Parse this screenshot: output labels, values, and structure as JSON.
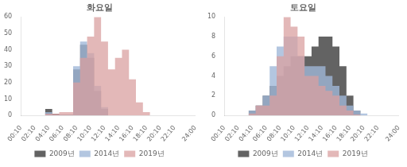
{
  "chart_data": [
    {
      "type": "area",
      "title": "화요일",
      "categories": [
        "00:10",
        null,
        "02:10",
        null,
        "04:10",
        null,
        "06:10",
        null,
        "08:10",
        null,
        "10:10",
        null,
        "12:10",
        null,
        "14:10",
        null,
        "16:10",
        null,
        "18:10",
        null,
        "20:10",
        null,
        "22:10",
        null,
        null,
        "24:00"
      ],
      "series": [
        {
          "name": "2009년",
          "color": "#4d4d4d",
          "values": [
            0,
            0,
            0,
            0,
            4,
            1,
            0.5,
            0.5,
            28,
            43,
            35,
            15,
            4,
            0,
            0,
            0,
            0,
            0,
            0,
            0,
            0,
            0,
            0,
            0,
            0,
            0
          ]
        },
        {
          "name": "2014년",
          "color": "#a0b8d8",
          "values": [
            0,
            0,
            0,
            0,
            2,
            0.5,
            0.5,
            0.5,
            30,
            45,
            38,
            18,
            5,
            0,
            0,
            0,
            0,
            0,
            0,
            0,
            0,
            0,
            0,
            0,
            0,
            0
          ]
        },
        {
          "name": "2019년",
          "color": "#d9a0a0",
          "values": [
            0,
            0,
            0,
            0,
            1,
            1,
            2,
            2,
            20,
            35,
            48,
            60,
            45,
            28,
            35,
            40,
            22,
            8,
            2,
            0,
            0,
            0,
            0,
            0,
            0,
            0
          ]
        }
      ],
      "ylim": [
        0,
        60
      ],
      "yticks": [
        0,
        10,
        20,
        30,
        40,
        50,
        60
      ],
      "grid": false,
      "legend": "bottom",
      "line_style": "step"
    },
    {
      "type": "area",
      "title": "토요일",
      "categories": [
        "00:10",
        null,
        "02:10",
        null,
        "04:10",
        null,
        "06:10",
        null,
        "08:10",
        null,
        "10:10",
        null,
        "12:10",
        null,
        "14:10",
        null,
        "16:10",
        null,
        "18:10",
        null,
        "20:10",
        null,
        "22:10",
        null,
        null,
        "24:00"
      ],
      "series": [
        {
          "name": "2009년",
          "color": "#4d4d4d",
          "values": [
            0,
            0,
            0,
            0,
            0.5,
            1,
            2,
            3,
            4,
            5,
            6,
            6,
            6,
            7,
            8,
            8,
            7,
            5,
            2,
            0.5,
            0,
            0,
            0,
            0,
            0,
            0
          ]
        },
        {
          "name": "2014년",
          "color": "#a0b8d8",
          "values": [
            0,
            0,
            0,
            0,
            0.5,
            1,
            2,
            5,
            7,
            8,
            8,
            6,
            5,
            5,
            5,
            4,
            3,
            2,
            1,
            0.5,
            0.2,
            0,
            0,
            0,
            0,
            0
          ]
        },
        {
          "name": "2019년",
          "color": "#d9a0a0",
          "values": [
            0,
            0,
            0,
            0,
            0.2,
            1,
            1,
            2,
            6,
            10,
            9,
            8,
            4,
            4,
            3,
            2.5,
            2,
            1,
            0.5,
            0.1,
            0,
            0,
            0,
            0,
            0,
            0
          ]
        }
      ],
      "ylim": [
        0,
        10
      ],
      "yticks": [
        0,
        2,
        4,
        6,
        8,
        10
      ],
      "grid": false,
      "legend": "bottom",
      "line_style": "step"
    }
  ]
}
